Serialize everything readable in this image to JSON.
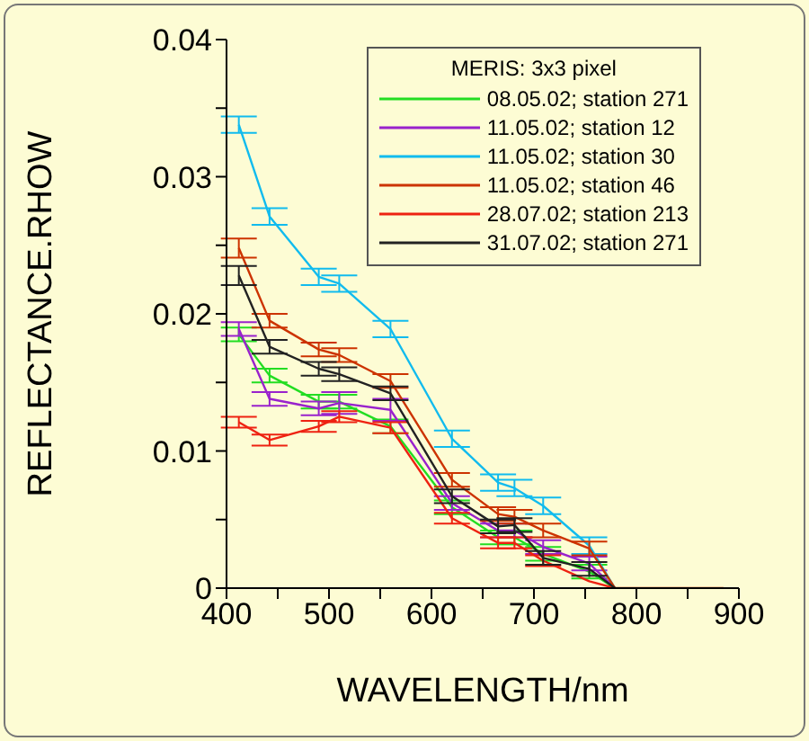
{
  "chart_data": {
    "type": "line",
    "xlabel": "WAVELENGTH/nm",
    "ylabel": "REFLECTANCE.RHOW",
    "legend_title": "MERIS: 3x3 pixel",
    "legend": "top right",
    "grid": false,
    "marker": "none",
    "xlim": [
      400,
      900
    ],
    "xticks": [
      400,
      {
        "value": 450,
        "label": null
      },
      500,
      {
        "value": 550,
        "label": null
      },
      600,
      {
        "value": 650,
        "label": null
      },
      700,
      {
        "value": 750,
        "label": null
      },
      800,
      {
        "value": 850,
        "label": null
      },
      900
    ],
    "ylim": [
      0,
      0.04
    ],
    "yticks": [
      0,
      {
        "value": 0.005,
        "label": null
      },
      0.01,
      {
        "value": 0.015,
        "label": null
      },
      0.02,
      {
        "value": 0.025,
        "label": null
      },
      0.03,
      {
        "value": 0.035,
        "label": null
      },
      0.04
    ],
    "series": [
      {
        "name": "08.05.02; station 271",
        "color": "#22dd22",
        "x": [
          412,
          442,
          490,
          510,
          560,
          620,
          665,
          681,
          709,
          754,
          779
        ],
        "values": [
          0.0185,
          0.0155,
          0.0136,
          0.0136,
          0.0118,
          0.0059,
          0.0037,
          0.0037,
          0.0025,
          0.0012,
          0
        ],
        "errors": [
          0.0005,
          0.0005,
          0.0005,
          0.0005,
          0.0005,
          0.0005,
          0.0005,
          0.0005,
          0.0005,
          0.0005,
          null
        ]
      },
      {
        "name": "11.05.02; station 12",
        "color": "#9922cc",
        "x": [
          412,
          442,
          490,
          510,
          560,
          620,
          665,
          681,
          709,
          754,
          779
        ],
        "values": [
          0.0189,
          0.0138,
          0.0131,
          0.0135,
          0.013,
          0.0062,
          0.0042,
          0.0042,
          0.003,
          0.0018,
          0
        ],
        "errors": [
          0.0005,
          0.0005,
          0.0005,
          0.0008,
          0.0008,
          0.0005,
          0.0005,
          0.0005,
          0.0005,
          0.0005,
          null
        ]
      },
      {
        "name": "11.05.02; station 30",
        "color": "#11bbee",
        "x": [
          412,
          442,
          490,
          510,
          560,
          620,
          665,
          681,
          709,
          754,
          779
        ],
        "values": [
          0.0338,
          0.0271,
          0.0227,
          0.0222,
          0.0189,
          0.0109,
          0.0077,
          0.0073,
          0.006,
          0.0031,
          0
        ],
        "errors": [
          0.0006,
          0.0006,
          0.0006,
          0.0006,
          0.0006,
          0.0006,
          0.0006,
          0.0006,
          0.0006,
          0.0006,
          null
        ]
      },
      {
        "name": "11.05.02; station 46",
        "color": "#cc3300",
        "x": [
          412,
          442,
          490,
          510,
          560,
          620,
          665,
          681,
          709,
          754,
          779,
          865,
          885
        ],
        "values": [
          0.0248,
          0.0195,
          0.0174,
          0.017,
          0.0151,
          0.0079,
          0.0054,
          0.0052,
          0.0042,
          0.0029,
          0,
          0,
          0
        ],
        "errors": [
          0.0007,
          0.0005,
          0.0005,
          0.0005,
          0.0005,
          0.0005,
          0.0005,
          0.0005,
          0.0005,
          0.0005,
          null,
          null,
          null
        ]
      },
      {
        "name": "28.07.02; station 213",
        "color": "#ee2211",
        "x": [
          412,
          442,
          490,
          510,
          560,
          620,
          665,
          681,
          709,
          754,
          779
        ],
        "values": [
          0.0121,
          0.0108,
          0.0118,
          0.0125,
          0.0117,
          0.0051,
          0.0033,
          0.0033,
          0.002,
          0.0005,
          0
        ],
        "errors": [
          0.0004,
          0.0004,
          0.0004,
          0.0004,
          0.0004,
          0.0004,
          0.0004,
          0.0004,
          0.0004,
          null,
          null
        ]
      },
      {
        "name": "31.07.02; station 271",
        "color": "#222222",
        "x": [
          412,
          442,
          490,
          510,
          560,
          620,
          665,
          681,
          709,
          754,
          779
        ],
        "values": [
          0.0228,
          0.0176,
          0.016,
          0.0156,
          0.0142,
          0.0067,
          0.0045,
          0.0046,
          0.0022,
          0.0014,
          0
        ],
        "errors": [
          0.0007,
          0.0005,
          0.0005,
          0.0005,
          0.0005,
          0.0005,
          0.0005,
          0.0005,
          0.0005,
          0.0005,
          null
        ]
      }
    ]
  }
}
